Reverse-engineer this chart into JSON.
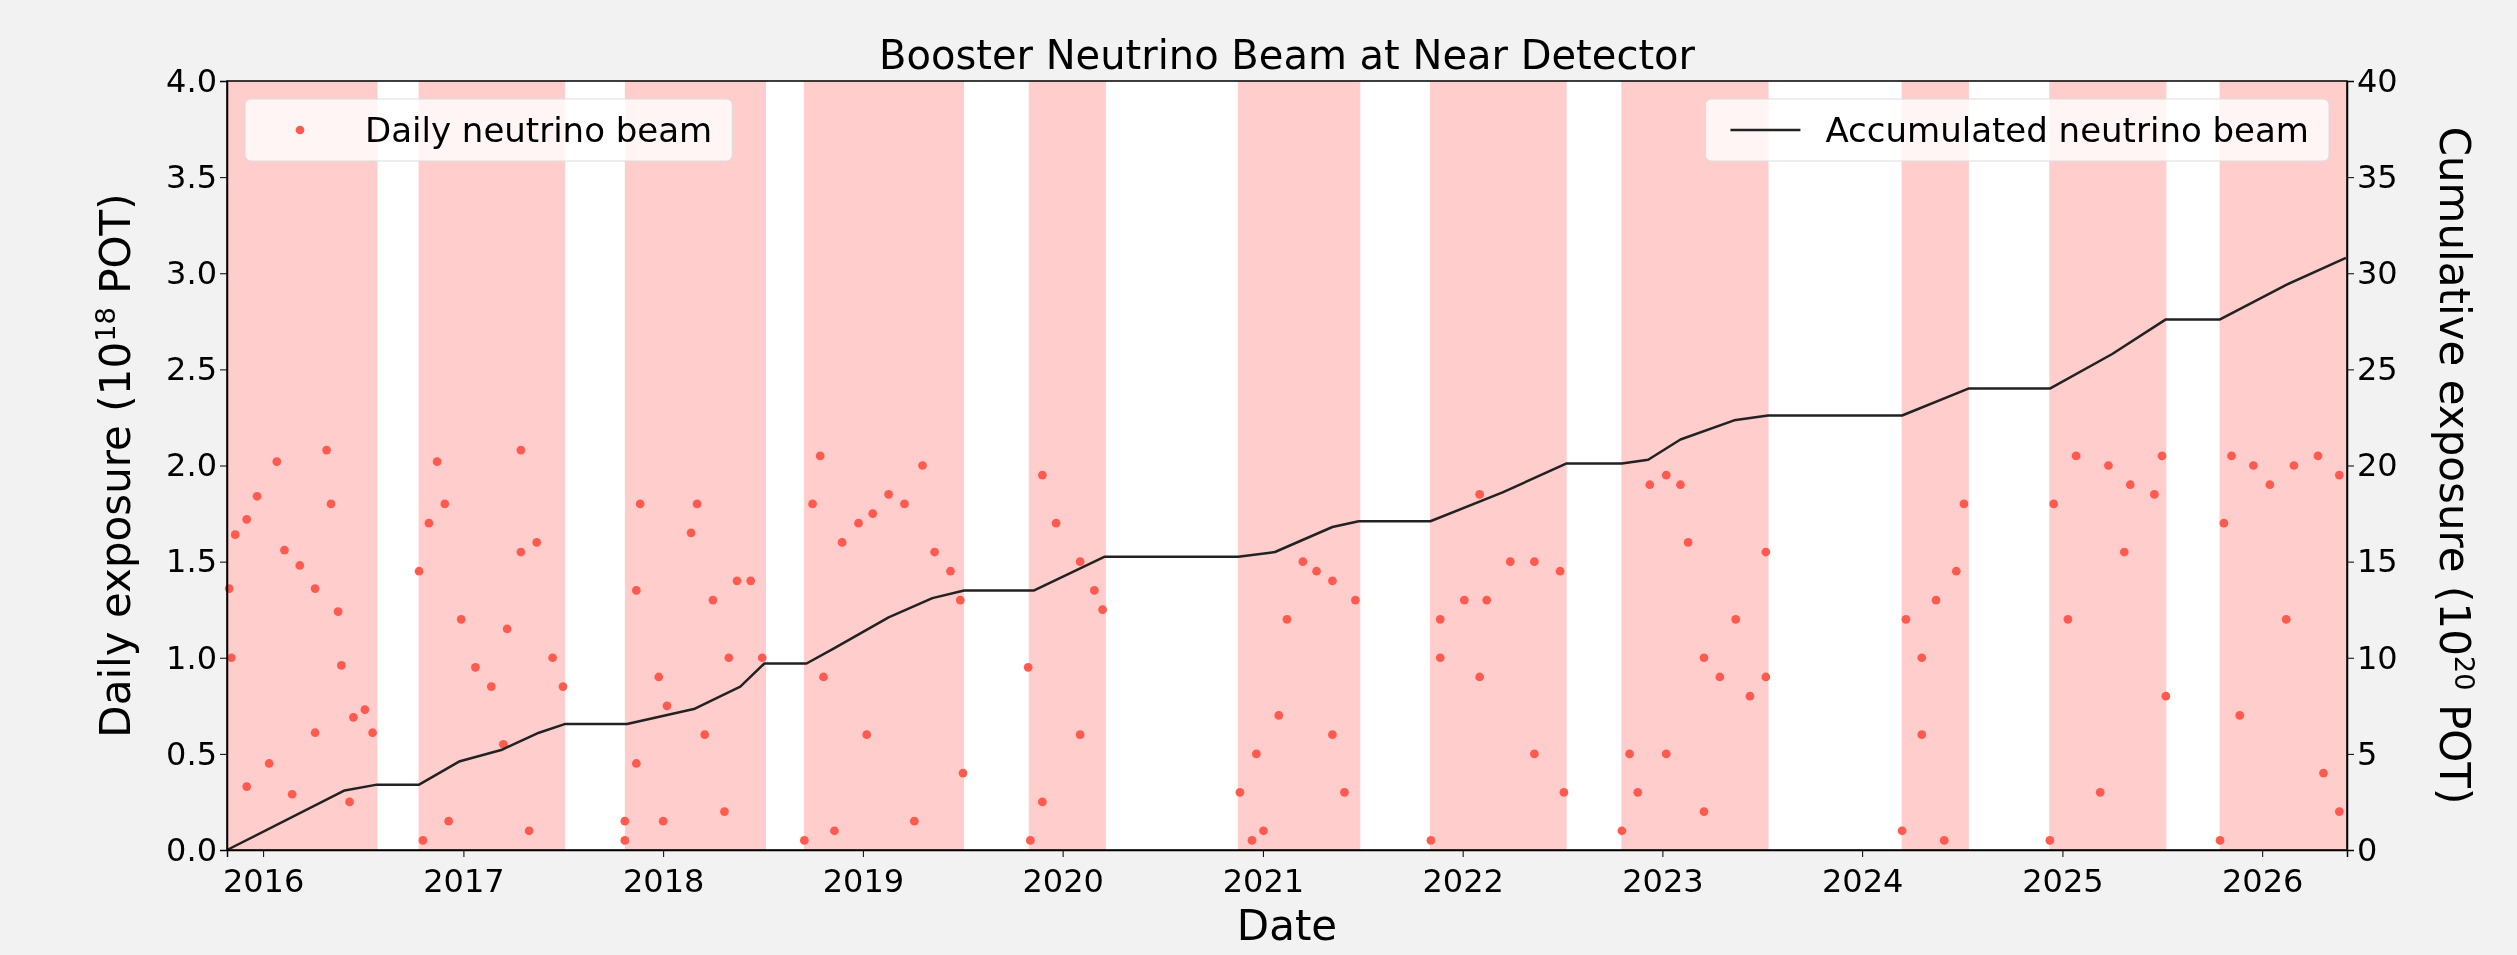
{
  "chart_data": {
    "type": "scatter",
    "title": "Booster Neutrino Beam at Near Detector",
    "xlabel": "Date",
    "ylabel": "Daily exposure (10$^{18}$ POT)",
    "y2label": "Cumulative exposure (10$^{20}$ POT)",
    "xlim": [
      "2015-10-27",
      "2026-06-05"
    ],
    "xticks": [
      "2016",
      "2017",
      "2018",
      "2019",
      "2020",
      "2021",
      "2022",
      "2023",
      "2024",
      "2025",
      "2026"
    ],
    "ylim": [
      0,
      4
    ],
    "yticks": [
      {
        "value": 0,
        "label": "0.0"
      },
      {
        "value": 0.5,
        "label": "0.5"
      },
      {
        "value": 1,
        "label": "1.0"
      },
      {
        "value": 1.5,
        "label": "1.5"
      },
      {
        "value": 2,
        "label": "2.0"
      },
      {
        "value": 2.5,
        "label": "2.5"
      },
      {
        "value": 3,
        "label": "3.0"
      },
      {
        "value": 3.5,
        "label": "3.5"
      },
      {
        "value": 4,
        "label": "4.0"
      }
    ],
    "y2lim": [
      0,
      40
    ],
    "y2ticks": [
      0,
      5,
      10,
      15,
      20,
      25,
      30,
      35,
      40
    ],
    "grid": false,
    "legend": "top",
    "bands": [
      {
        "axis": "x",
        "from": "2015-10-27",
        "to": "2016-07-27",
        "color": "#ffcdcb"
      },
      {
        "axis": "x",
        "from": "2016-10-12",
        "to": "2017-07-05",
        "color": "#ffcdcb"
      },
      {
        "axis": "x",
        "from": "2017-10-24",
        "to": "2018-07-07",
        "color": "#ffcdcb"
      },
      {
        "axis": "x",
        "from": "2018-09-16",
        "to": "2019-07-04",
        "color": "#ffcdcb"
      },
      {
        "axis": "x",
        "from": "2019-11-01",
        "to": "2020-03-19",
        "color": "#ffcdcb"
      },
      {
        "axis": "x",
        "from": "2020-11-17",
        "to": "2021-06-27",
        "color": "#ffcdcb"
      },
      {
        "axis": "x",
        "from": "2021-11-03",
        "to": "2022-07-09",
        "color": "#ffcdcb"
      },
      {
        "axis": "x",
        "from": "2022-10-19",
        "to": "2023-07-13",
        "color": "#ffcdcb"
      },
      {
        "axis": "x",
        "from": "2024-03-14",
        "to": "2024-07-13",
        "color": "#ffcdcb"
      },
      {
        "axis": "x",
        "from": "2024-12-09",
        "to": "2025-07-09",
        "color": "#ffcdcb"
      },
      {
        "axis": "x",
        "from": "2025-10-16",
        "to": "2026-06-05",
        "color": "#ffcdcb"
      }
    ],
    "series": [
      {
        "name": "Daily neutrino beam",
        "color": "#ff5a4f",
        "marker": "circle",
        "x": [
          "2015-10-31",
          "2015-11-11",
          "2015-12-02",
          "2015-12-21",
          "2016-01-26",
          "2016-02-09",
          "2016-03-08",
          "2016-04-05",
          "2016-04-26",
          "2016-05-04",
          "2016-05-17",
          "2016-05-23",
          "2016-06-14",
          "2016-07-05",
          "2016-07-19",
          "2015-12-02",
          "2016-01-12",
          "2016-02-23",
          "2015-11-04",
          "2016-04-05",
          "2016-06-07",
          "2016-10-12",
          "2016-10-30",
          "2016-11-14",
          "2016-11-28",
          "2016-12-28",
          "2017-01-23",
          "2017-02-21",
          "2017-03-22",
          "2017-04-16",
          "2017-05-15",
          "2017-06-13",
          "2017-07-02",
          "2017-04-16",
          "2016-12-05",
          "2017-03-15",
          "2016-10-19",
          "2017-05-01",
          "2017-10-23",
          "2017-11-13",
          "2017-11-20",
          "2017-12-24",
          "2018-01-08",
          "2018-02-21",
          "2018-03-04",
          "2018-04-02",
          "2018-05-01",
          "2018-05-16",
          "2018-06-10",
          "2018-07-01",
          "2017-10-23",
          "2018-01-01",
          "2018-03-18",
          "2018-04-23",
          "2017-11-13",
          "2018-09-16",
          "2018-10-01",
          "2018-10-15",
          "2018-10-21",
          "2018-11-10",
          "2018-11-24",
          "2018-12-24",
          "2019-01-08",
          "2019-01-19",
          "2019-02-17",
          "2019-03-18",
          "2019-04-05",
          "2019-04-20",
          "2019-05-12",
          "2019-06-10",
          "2019-06-28",
          "2019-07-03",
          "2019-10-30",
          "2019-11-03",
          "2019-11-25",
          "2019-12-20",
          "2020-02-02",
          "2020-02-28",
          "2020-03-14",
          "2020-02-02",
          "2019-11-25",
          "2020-11-20",
          "2020-12-12",
          "2020-12-20",
          "2021-01-02",
          "2021-01-30",
          "2021-02-14",
          "2021-03-15",
          "2021-04-09",
          "2021-05-08",
          "2021-05-08",
          "2021-05-30",
          "2021-06-19",
          "2021-11-04",
          "2021-11-21",
          "2022-01-04",
          "2022-02-01",
          "2022-02-01",
          "2022-02-14",
          "2022-03-29",
          "2022-05-12",
          "2022-05-12",
          "2022-06-28",
          "2022-07-05",
          "2021-11-21",
          "2022-10-19",
          "2022-11-02",
          "2022-11-17",
          "2022-12-09",
          "2023-01-08",
          "2023-01-08",
          "2023-02-03",
          "2023-02-17",
          "2023-03-18",
          "2023-03-18",
          "2023-04-16",
          "2023-05-15",
          "2023-06-10",
          "2023-07-09",
          "2023-07-09",
          "2024-03-14",
          "2024-03-21",
          "2024-04-19",
          "2024-04-19",
          "2024-05-15",
          "2024-05-30",
          "2024-06-21",
          "2024-07-05",
          "2024-12-09",
          "2024-12-16",
          "2025-01-11",
          "2025-01-26",
          "2025-03-11",
          "2025-03-26",
          "2025-04-24",
          "2025-05-05",
          "2025-06-18",
          "2025-07-02",
          "2025-07-09",
          "2025-10-16",
          "2025-10-23",
          "2025-11-06",
          "2025-11-21",
          "2025-12-16",
          "2026-01-15",
          "2026-02-14",
          "2026-02-28",
          "2026-04-13",
          "2026-04-23",
          "2026-05-22",
          "2026-05-22"
        ],
        "values": [
          1.36,
          1.64,
          1.72,
          1.84,
          2.02,
          1.56,
          1.48,
          1.36,
          2.08,
          1.8,
          1.24,
          0.96,
          0.69,
          0.73,
          0.61,
          0.33,
          0.45,
          0.29,
          1.0,
          0.61,
          0.25,
          1.45,
          1.7,
          2.02,
          1.8,
          1.2,
          0.95,
          0.85,
          1.15,
          1.55,
          1.6,
          1.0,
          0.85,
          2.08,
          0.15,
          0.55,
          0.05,
          0.1,
          0.15,
          1.35,
          1.8,
          0.9,
          0.75,
          1.65,
          1.8,
          1.3,
          1.0,
          1.4,
          1.4,
          1.0,
          0.05,
          0.15,
          0.6,
          0.2,
          0.45,
          0.05,
          1.8,
          2.05,
          0.9,
          0.1,
          1.6,
          1.7,
          0.6,
          1.75,
          1.85,
          1.8,
          0.15,
          2.0,
          1.55,
          1.45,
          1.3,
          0.4,
          0.95,
          0.05,
          1.95,
          1.7,
          1.5,
          1.35,
          1.25,
          0.6,
          0.25,
          0.3,
          0.05,
          0.5,
          0.1,
          0.7,
          1.2,
          1.5,
          1.45,
          1.4,
          0.6,
          0.3,
          1.3,
          0.05,
          1.2,
          1.3,
          1.85,
          0.9,
          1.3,
          1.5,
          1.5,
          0.5,
          1.45,
          0.3,
          1.0,
          0.1,
          0.5,
          0.3,
          1.9,
          1.95,
          0.5,
          1.9,
          1.6,
          1.0,
          0.2,
          0.9,
          1.2,
          0.8,
          1.55,
          0.9,
          0.1,
          1.2,
          1.0,
          0.6,
          1.3,
          0.05,
          1.45,
          1.8,
          0.05,
          1.8,
          1.2,
          2.05,
          0.3,
          2.0,
          1.55,
          1.9,
          1.85,
          2.05,
          0.8,
          0.05,
          1.7,
          2.05,
          0.7,
          2.0,
          1.9,
          1.2,
          2.0,
          2.05,
          0.4,
          1.95,
          0.2
        ]
      },
      {
        "type": "line",
        "name": "Accumulated neutrino beam",
        "color": "#222222",
        "axis": "y2",
        "x": [
          "2015-10-27",
          "2016-05-29",
          "2016-07-27",
          "2016-10-12",
          "2016-12-24",
          "2017-03-11",
          "2017-05-19",
          "2017-07-05",
          "2017-10-27",
          "2018-02-28",
          "2018-05-22",
          "2018-07-05",
          "2018-09-20",
          "2018-11-10",
          "2019-02-17",
          "2019-05-08",
          "2019-07-05",
          "2019-11-10",
          "2020-03-17",
          "2020-11-17",
          "2021-01-23",
          "2021-05-08",
          "2021-06-25",
          "2021-11-03",
          "2022-03-15",
          "2022-07-09",
          "2022-10-19",
          "2022-12-06",
          "2023-02-03",
          "2023-05-12",
          "2023-07-13",
          "2024-03-14",
          "2024-07-13",
          "2024-12-09",
          "2025-04-02",
          "2025-07-09",
          "2025-10-16",
          "2026-02-14",
          "2026-06-03"
        ],
        "values": [
          0,
          3.1,
          3.4,
          3.4,
          4.6,
          5.2,
          6.1,
          6.55,
          6.55,
          7.35,
          8.5,
          9.7,
          9.7,
          10.5,
          12.1,
          13.1,
          13.5,
          13.5,
          15.25,
          15.25,
          15.5,
          16.8,
          17.1,
          17.1,
          18.6,
          20.1,
          20.1,
          20.3,
          21.35,
          22.35,
          22.6,
          22.6,
          24.0,
          24.0,
          25.8,
          27.6,
          27.6,
          29.4,
          30.8
        ]
      }
    ]
  }
}
